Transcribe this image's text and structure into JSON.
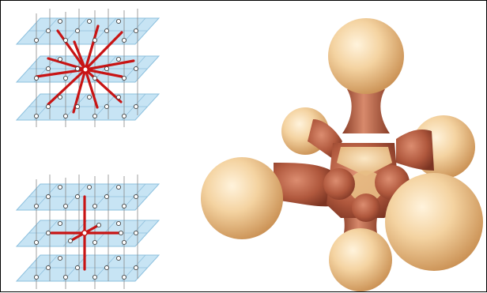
{
  "diagram": {
    "panels": [
      {
        "id": "lattice-all-neighbors",
        "description_icon": "3d-lattice-with-radial-connections-icon"
      },
      {
        "id": "lattice-axial-neighbors",
        "description_icon": "3d-lattice-with-axial-connections-icon"
      },
      {
        "id": "molecule-model",
        "description_icon": "3d-ball-and-tube-molecule-icon"
      }
    ],
    "colors": {
      "plane_fill": "#bfe0f2",
      "plane_line": "#7fb6d8",
      "grid_line": "#8a8a8a",
      "node_fill": "#ffffff",
      "node_stroke": "#444444",
      "connection": "#c81414",
      "sphere_light": "#fbe4bf",
      "sphere_dark": "#d9a461",
      "tube_light": "#d8876a",
      "tube_dark": "#8e3f29",
      "core": "#f2cf94"
    }
  }
}
